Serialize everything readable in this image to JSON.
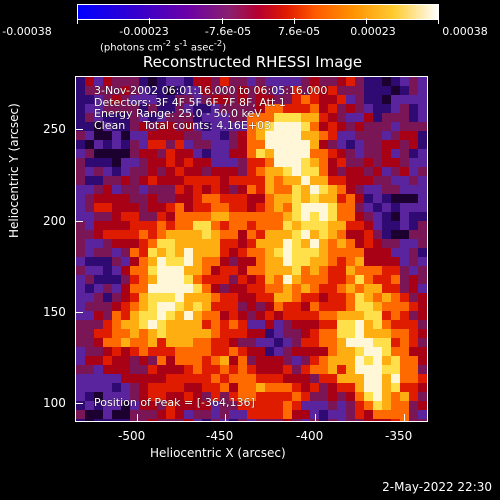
{
  "colorbar": {
    "tick_labels": [
      "-0.00038",
      "-0.00023",
      "-7.6e-05",
      "7.6e-05",
      "0.00023",
      "0.00038"
    ],
    "unit_parts": [
      "(photons cm",
      "-2",
      " s",
      "-1",
      " asec",
      "-2",
      ")"
    ]
  },
  "title": "Reconstructed RHESSI Image",
  "stats": {
    "time_range": "3-Nov-2002 06:01:16.000 to 06:05:16.000",
    "detectors": "Detectors: 3F 4F 5F 6F 7F 8F, Att 1",
    "energy": "Energy Range: 25.0 - 50.0 keV",
    "clean": "Clean",
    "counts": "Total counts: 4.16E+03",
    "peak": "Position of Peak = [-364,136]"
  },
  "axes": {
    "xlabel": "Heliocentric X (arcsec)",
    "ylabel": "Heliocentric Y (arcsec)",
    "xticks": [
      "-500",
      "-450",
      "-400",
      "-350"
    ],
    "yticks": [
      "250",
      "200",
      "150",
      "100"
    ]
  },
  "footer": "2-May-2022 22:30",
  "chart_data": {
    "type": "heatmap",
    "title": "Reconstructed RHESSI Image",
    "xlabel": "Heliocentric X (arcsec)",
    "ylabel": "Heliocentric Y (arcsec)",
    "xlim": [
      -530,
      -333
    ],
    "ylim": [
      90,
      276
    ],
    "x_ticks": [
      -500,
      -450,
      -400,
      -350
    ],
    "y_ticks": [
      250,
      200,
      150,
      100
    ],
    "colorbar": {
      "min": -0.00038,
      "max": 0.00038,
      "ticks": [
        -0.00038,
        -0.00023,
        -7.6e-05,
        7.6e-05,
        0.00023,
        0.00038
      ]
    },
    "peak_position": [
      -364,
      136
    ]
  }
}
